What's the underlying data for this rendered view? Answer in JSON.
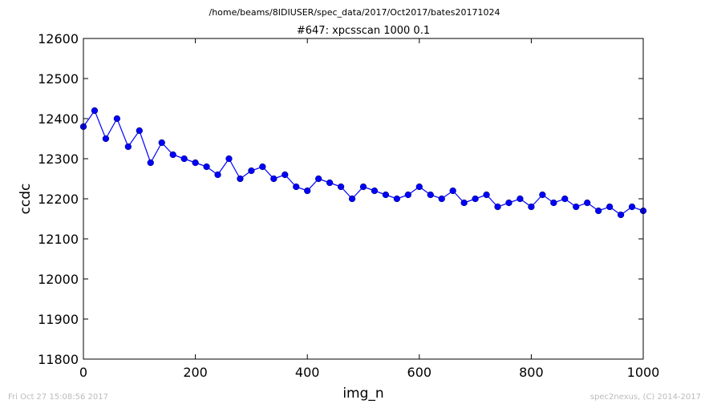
{
  "header": {
    "path": "/home/beams/8IDIUSER/spec_data/2017/Oct2017/bates20171024"
  },
  "footer": {
    "timestamp": "Fri Oct 27 15:08:56 2017",
    "credit": "spec2nexus, (C) 2014-2017"
  },
  "chart_data": {
    "type": "line",
    "title": "#647: xpcsscan 1000 0.1",
    "xlabel": "img_n",
    "ylabel": "ccdc",
    "xlim": [
      0,
      1000
    ],
    "ylim": [
      11800,
      12600
    ],
    "xticks": [
      0,
      200,
      400,
      600,
      800,
      1000
    ],
    "yticks": [
      11800,
      11900,
      12000,
      12100,
      12200,
      12300,
      12400,
      12500,
      12600
    ],
    "grid": false,
    "legend": "none",
    "marker": "circle",
    "colors": {
      "series": "#0000ff",
      "marker": "#0000ff"
    },
    "series": [
      {
        "x": [
          0,
          20,
          40,
          60,
          80,
          100,
          120,
          140,
          160,
          180,
          200,
          220,
          240,
          260,
          280,
          300,
          320,
          340,
          360,
          380,
          400,
          420,
          440,
          460,
          480,
          500,
          520,
          540,
          560,
          580,
          600,
          620,
          640,
          660,
          680,
          700,
          720,
          740,
          760,
          780,
          800,
          820,
          840,
          860,
          880,
          900,
          920,
          940,
          960,
          980,
          1000
        ],
        "y": [
          12380,
          12420,
          12350,
          12400,
          12330,
          12370,
          12290,
          12340,
          12310,
          12300,
          12290,
          12280,
          12260,
          12300,
          12250,
          12270,
          12280,
          12250,
          12260,
          12230,
          12220,
          12250,
          12240,
          12230,
          12200,
          12230,
          12220,
          12210,
          12200,
          12210,
          12230,
          12210,
          12200,
          12220,
          12190,
          12200,
          12210,
          12180,
          12190,
          12200,
          12180,
          12210,
          12190,
          12200,
          12180,
          12190,
          12170,
          12180,
          12160,
          12180,
          12170
        ]
      }
    ]
  }
}
